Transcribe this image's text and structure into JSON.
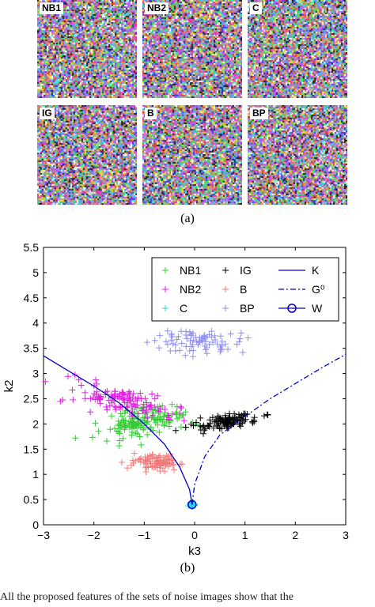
{
  "panel_a": {
    "caption": "(a)",
    "tiles": [
      "NB1",
      "NB2",
      "C",
      "IG",
      "B",
      "BP"
    ]
  },
  "panel_b": {
    "caption": "(b)"
  },
  "footer_text": "All the proposed features of the sets of noise images show that the",
  "chart_data": {
    "type": "scatter",
    "xlabel": "k3",
    "ylabel": "k2",
    "xlim": [
      -3,
      3
    ],
    "ylim": [
      0,
      5.5
    ],
    "xticks": [
      "−3",
      "−2",
      "−1",
      "0",
      "1",
      "2",
      "3"
    ],
    "yticks": [
      "0",
      "0.5",
      "1",
      "1.5",
      "2",
      "2.5",
      "3",
      "3.5",
      "4",
      "4.5",
      "5",
      "5.5"
    ],
    "legend_position": "top-right",
    "legend": [
      "NB1",
      "NB2",
      "C",
      "IG",
      "B",
      "BP",
      "K",
      "G⁰",
      "W"
    ],
    "colors": {
      "NB1": "#33cc33",
      "NB2": "#e020e0",
      "C": "#22d8e8",
      "IG": "#000000",
      "B": "#f07a7a",
      "BP": "#9090f0",
      "K": "#0000cc",
      "G0": "#0000cc",
      "W": "#0000cc"
    },
    "clusters": [
      {
        "name": "NB1",
        "cx": -1.0,
        "cy": 2.02,
        "sx": 0.45,
        "sy": 0.15,
        "n": 150,
        "tilt": 0.15
      },
      {
        "name": "NB2",
        "cx": -1.5,
        "cy": 2.48,
        "sx": 0.55,
        "sy": 0.12,
        "n": 130,
        "tilt": -0.2
      },
      {
        "name": "C",
        "cx": -0.05,
        "cy": 0.4,
        "sx": 0.03,
        "sy": 0.02,
        "n": 20,
        "tilt": 0
      },
      {
        "name": "IG",
        "cx": 0.6,
        "cy": 2.05,
        "sx": 0.32,
        "sy": 0.07,
        "n": 110,
        "tilt": 0.15
      },
      {
        "name": "B",
        "cx": -0.8,
        "cy": 1.25,
        "sx": 0.22,
        "sy": 0.08,
        "n": 90,
        "tilt": -0.1
      },
      {
        "name": "BP",
        "cx": 0.1,
        "cy": 3.62,
        "sx": 0.45,
        "sy": 0.15,
        "n": 80,
        "tilt": 0
      }
    ],
    "K_curve": [
      [
        -3,
        3.35
      ],
      [
        -2.5,
        3.05
      ],
      [
        -2,
        2.75
      ],
      [
        -1.5,
        2.42
      ],
      [
        -1,
        2.0
      ],
      [
        -0.6,
        1.6
      ],
      [
        -0.3,
        1.15
      ],
      [
        -0.1,
        0.7
      ],
      [
        -0.05,
        0.4
      ]
    ],
    "G0_curve": [
      [
        -0.05,
        0.4
      ],
      [
        0.0,
        0.8
      ],
      [
        0.2,
        1.35
      ],
      [
        0.5,
        1.78
      ],
      [
        1.0,
        2.15
      ],
      [
        1.5,
        2.5
      ],
      [
        2.0,
        2.8
      ],
      [
        2.5,
        3.1
      ],
      [
        3.0,
        3.38
      ]
    ],
    "W_point": [
      -0.05,
      0.4
    ]
  }
}
